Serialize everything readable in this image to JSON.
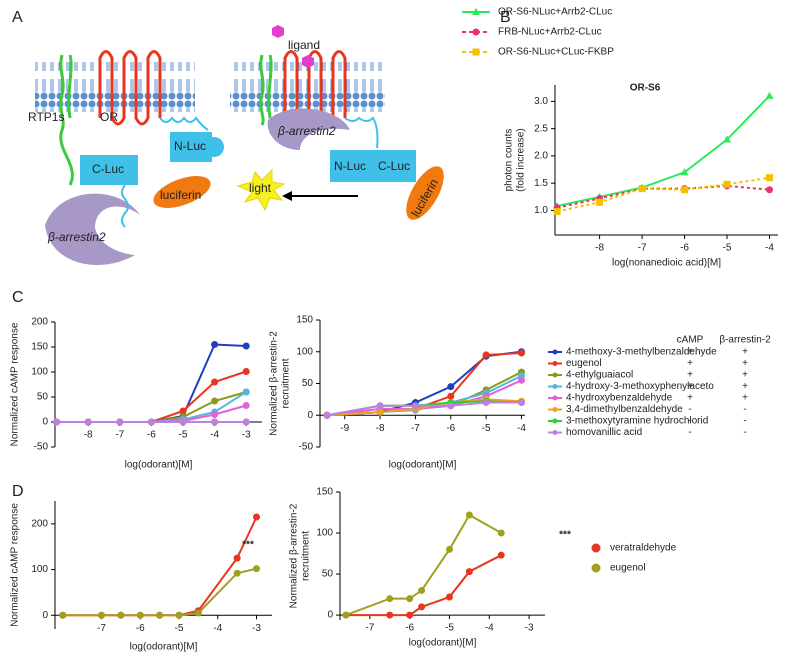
{
  "panel_labels": [
    "A",
    "B",
    "C",
    "D"
  ],
  "diagram": {
    "ligand": "ligand",
    "rtp1s": "RTP1s",
    "or": "OR",
    "nluc_left": "N-Luc",
    "cluc_left": "C-Luc",
    "arrestin_left": "β-arrestin2",
    "luciferin_left": "luciferin",
    "arrestin_right": "β-arrestin2",
    "nluc_right": "N-Luc",
    "cluc_right": "C-Luc",
    "light": "light",
    "luciferin_right": "luciferin"
  },
  "legend_table": {
    "headers": [
      "cAMP",
      "β-arrestin-2"
    ],
    "rows": [
      [
        "+",
        "+"
      ],
      [
        "+",
        "+"
      ],
      [
        "+",
        "+"
      ],
      [
        "+",
        "+"
      ],
      [
        "+",
        "+"
      ],
      [
        "-",
        "-"
      ],
      [
        "-",
        "-"
      ],
      [
        "-",
        "-"
      ]
    ]
  },
  "chart_data": [
    {
      "type": "line",
      "title": "OR-S6",
      "xlabel": "log(nonanedioic acid)[M]",
      "ylabel": [
        "photon counts",
        "(fold increase)"
      ],
      "x": [
        -9,
        -8,
        -7,
        -6,
        -5,
        -4
      ],
      "xlim": [
        -9.05,
        -3.8
      ],
      "xticks": [
        -8,
        -7,
        -6,
        -5,
        -4
      ],
      "ylim": [
        0.55,
        3.3
      ],
      "yticks": [
        {
          "value": 1,
          "label": "1.0"
        },
        1.5,
        {
          "value": 2,
          "label": "2.0"
        },
        2.5,
        {
          "value": 3,
          "label": "3.0"
        }
      ],
      "legend": "above",
      "series": [
        {
          "name": "OR-S6-NLuc+Arrb2-CLuc",
          "color": "#2ee85a",
          "marker": "triangle",
          "dash": false,
          "values": [
            1.08,
            1.25,
            1.42,
            1.7,
            2.3,
            3.1
          ]
        },
        {
          "name": "FRB-NLuc+Arrb2-CLuc",
          "color": "#e8336e",
          "marker": "circle",
          "dash": true,
          "values": [
            1.05,
            1.22,
            1.4,
            1.4,
            1.45,
            1.38
          ]
        },
        {
          "name": "OR-S6-NLuc+CLuc-FKBP",
          "color": "#f5c000",
          "marker": "square",
          "dash": true,
          "values": [
            0.98,
            1.15,
            1.4,
            1.38,
            1.48,
            1.6
          ]
        }
      ]
    },
    {
      "type": "line",
      "xlabel": "log(odorant)[M]",
      "ylabel": [
        "Normalized cAMP response"
      ],
      "x": [
        -9,
        -8,
        -7,
        -6,
        -5,
        -4,
        -3
      ],
      "xlim": [
        -9.05,
        -2.5
      ],
      "xticks": [
        -8,
        -7,
        -6,
        -5,
        -4,
        -3
      ],
      "ylim": [
        -50,
        200
      ],
      "yticks": [
        -50,
        0,
        50,
        100,
        150,
        200
      ],
      "series": [
        {
          "color": "#1f3fbf",
          "values": [
            0,
            0,
            0,
            0,
            12,
            155,
            152
          ]
        },
        {
          "color": "#e8351e",
          "values": [
            0,
            0,
            0,
            0,
            22,
            80,
            101
          ]
        },
        {
          "color": "#8a9a1a",
          "values": [
            0,
            0,
            0,
            0,
            10,
            42,
            60
          ]
        },
        {
          "color": "#5ab4e0",
          "values": [
            0,
            0,
            0,
            0,
            5,
            20,
            60
          ]
        },
        {
          "color": "#e060e0",
          "values": [
            0,
            0,
            0,
            0,
            2,
            15,
            33
          ]
        },
        {
          "color": "#f0a020",
          "values": [
            0,
            0,
            0,
            0,
            0,
            0,
            0
          ]
        },
        {
          "color": "#30d030",
          "values": [
            0,
            0,
            0,
            0,
            0,
            0,
            0
          ]
        },
        {
          "color": "#c080e0",
          "values": [
            0,
            0,
            0,
            0,
            0,
            0,
            0
          ]
        }
      ]
    },
    {
      "type": "line",
      "xlabel": "log(odorant)[M]",
      "ylabel": [
        "Normalized β-arrestin-2",
        "recruitment"
      ],
      "x": [
        -9.5,
        -8,
        -7,
        -6,
        -5,
        -4
      ],
      "xlim": [
        -9.7,
        -3.9
      ],
      "xticks": [
        -9,
        -8,
        -7,
        -6,
        -5,
        -4
      ],
      "ylim": [
        -50,
        150
      ],
      "yticks": [
        -50,
        0,
        50,
        100,
        150
      ],
      "legend": "table",
      "series": [
        {
          "name": "4-methoxy-3-methylbenzaldehyde",
          "color": "#1f3fbf",
          "values": [
            0,
            5,
            20,
            45,
            93,
            100
          ]
        },
        {
          "name": "eugenol",
          "color": "#e8351e",
          "values": [
            0,
            5,
            10,
            30,
            95,
            98
          ]
        },
        {
          "name": "4-ethylguaiacol",
          "color": "#8a9a1a",
          "values": [
            0,
            5,
            10,
            15,
            40,
            68
          ]
        },
        {
          "name": "4-hydroxy-3-methoxyphenylaceto",
          "color": "#5ab4e0",
          "values": [
            0,
            5,
            8,
            20,
            35,
            62
          ]
        },
        {
          "name": "4-hydroxybenzaldehyde",
          "color": "#e060e0",
          "values": [
            0,
            10,
            10,
            15,
            30,
            55
          ]
        },
        {
          "name": "3,4-dimethylbenzaldehyde",
          "color": "#f0a020",
          "values": [
            0,
            5,
            10,
            20,
            25,
            22
          ]
        },
        {
          "name": "3-methoxytyramine hydrochlorid",
          "color": "#30d030",
          "values": [
            0,
            15,
            15,
            20,
            22,
            20
          ]
        },
        {
          "name": "homovanillic acid",
          "color": "#c080e0",
          "values": [
            0,
            15,
            15,
            15,
            20,
            20
          ]
        }
      ]
    },
    {
      "type": "line",
      "xlabel": "log(odorant)[M]",
      "ylabel": [
        "Normalized cAMP response"
      ],
      "annotation": "***",
      "x": [
        -8,
        -7,
        -6.5,
        -6,
        -5.5,
        -5,
        -4.5,
        -3.5,
        -3
      ],
      "xlim": [
        -8.2,
        -2.6
      ],
      "xticks": [
        -7,
        -6,
        -5,
        -4,
        -3
      ],
      "ylim": [
        -30,
        250
      ],
      "yticks": [
        0,
        100,
        200
      ],
      "series": [
        {
          "color": "#e8351e",
          "values": [
            0,
            0,
            0,
            0,
            0,
            0,
            10,
            125,
            215
          ]
        },
        {
          "color": "#a0a020",
          "values": [
            0,
            0,
            0,
            0,
            0,
            0,
            5,
            92,
            102
          ]
        }
      ]
    },
    {
      "type": "line",
      "xlabel": "log(odorant)[M]",
      "ylabel": [
        "Normalized β-arrestin-2",
        "recruitment"
      ],
      "annotation": "***",
      "x": [
        -7.6,
        -6.5,
        -6,
        -5.7,
        -5,
        -4.5,
        -3.7
      ],
      "xlim": [
        -7.75,
        -2.6
      ],
      "xticks": [
        -7,
        -6,
        -5,
        -4,
        -3
      ],
      "ylim": [
        -6,
        150
      ],
      "yticks": [
        0,
        50,
        100,
        150
      ],
      "legend": "right",
      "series": [
        {
          "name": "veratraldehyde",
          "color": "#e8351e",
          "values": [
            0,
            0,
            0,
            10,
            22,
            53,
            73
          ]
        },
        {
          "name": "eugenol",
          "color": "#a0a020",
          "values": [
            0,
            20,
            20,
            30,
            80,
            122,
            100
          ]
        }
      ]
    }
  ]
}
